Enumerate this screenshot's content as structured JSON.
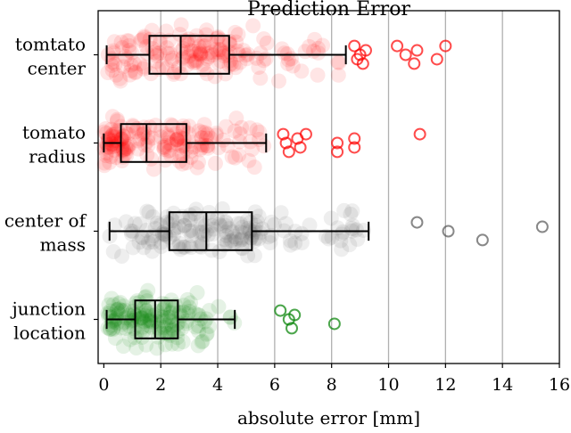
{
  "chart_data": {
    "type": "boxplot",
    "title": "Prediction Error",
    "xlabel": "absolute error [mm]",
    "ylabel": "",
    "xlim": [
      -0.2,
      16
    ],
    "xticks": [
      0,
      2,
      4,
      6,
      8,
      10,
      12,
      14,
      16
    ],
    "grid": "vertical",
    "orientation": "horizontal",
    "categories": [
      {
        "label_lines": [
          "tomtato",
          "center"
        ],
        "color": "#ff0000",
        "whisker_low": 0.1,
        "q1": 1.6,
        "median": 2.7,
        "q3": 4.4,
        "whisker_high": 8.5,
        "outliers": [
          8.8,
          9.0,
          9.1,
          9.2,
          8.9,
          10.3,
          10.6,
          10.9,
          11.0,
          11.7,
          12.0
        ]
      },
      {
        "label_lines": [
          "tomato",
          "radius"
        ],
        "color": "#ff0000",
        "whisker_low": 0.0,
        "q1": 0.6,
        "median": 1.5,
        "q3": 2.9,
        "whisker_high": 5.7,
        "outliers": [
          6.3,
          6.4,
          6.5,
          6.8,
          6.9,
          7.1,
          8.2,
          8.2,
          8.8,
          8.8,
          11.1
        ]
      },
      {
        "label_lines": [
          "center of",
          "mass"
        ],
        "color": "#555555",
        "whisker_low": 0.2,
        "q1": 2.3,
        "median": 3.6,
        "q3": 5.2,
        "whisker_high": 9.3,
        "outliers": [
          11.0,
          12.1,
          13.3,
          15.4
        ]
      },
      {
        "label_lines": [
          "junction",
          "location"
        ],
        "color": "#008000",
        "whisker_low": 0.1,
        "q1": 1.1,
        "median": 1.8,
        "q3": 2.6,
        "whisker_high": 4.6,
        "outliers": [
          6.2,
          6.5,
          6.6,
          6.7,
          8.1
        ]
      }
    ]
  }
}
